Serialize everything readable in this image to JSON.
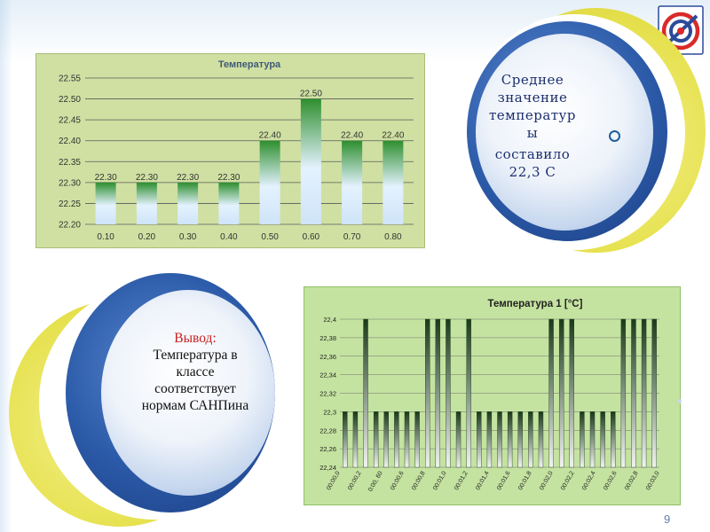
{
  "slide": {
    "page_number": "9",
    "average_text": [
      "Среднее",
      "значение",
      "температур",
      "ы",
      "составило",
      "22,3  С"
    ],
    "conclusion_title": "Вывод:",
    "conclusion_text": [
      "Температура в",
      "классе",
      "соответствует",
      "нормам САНПина"
    ],
    "logo_icon": "sanpin-emblem-icon"
  },
  "chart_data": [
    {
      "type": "bar",
      "title": "Температура",
      "xlabel": "",
      "ylabel": "",
      "categories": [
        "0.10",
        "0.20",
        "0.30",
        "0.40",
        "0.50",
        "0.60",
        "0.70",
        "0.80"
      ],
      "values": [
        22.3,
        22.3,
        22.3,
        22.3,
        22.4,
        22.5,
        22.4,
        22.4
      ],
      "data_labels": [
        "22.30",
        "22.30",
        "22.30",
        "22.30",
        "22.40",
        "22.50",
        "22.40",
        "22.40"
      ],
      "ylim": [
        22.2,
        22.55
      ],
      "yticks": [
        "22.20",
        "22.25",
        "22.30",
        "22.35",
        "22.40",
        "22.45",
        "22.50",
        "22.55"
      ],
      "grid": true,
      "legend": "none",
      "colors": {
        "background": "#cfe0a2",
        "bar_top": "#2e8f2e",
        "bar_bottom": "#cfe4f8"
      }
    },
    {
      "type": "bar",
      "title": "Температура  1 [°C]",
      "xlabel": "",
      "ylabel": "",
      "values": [
        22.3,
        22.3,
        22.4,
        22.3,
        22.3,
        22.3,
        22.3,
        22.3,
        22.4,
        22.4,
        22.4,
        22.3,
        22.4,
        22.3,
        22.3,
        22.3,
        22.3,
        22.3,
        22.3,
        22.3,
        22.4,
        22.4,
        22.4,
        22.3,
        22.3,
        22.3,
        22.3,
        22.4,
        22.4,
        22.4,
        22.4
      ],
      "x_tick_labels": [
        "00:00,0",
        "00:00,2",
        "0:00, 60",
        "00:00,6",
        "00:00,8",
        "00:01,0",
        "00:01,2",
        "00:01,4",
        "00:01,6",
        "00:01,8",
        "00:02,0",
        "00:02,2",
        "00:02,4",
        "00:02,6",
        "00:02,8",
        "00:03,0"
      ],
      "ylim": [
        22.24,
        22.4
      ],
      "yticks": [
        "22,24",
        "22,26",
        "22,28",
        "22,3",
        "22,32",
        "22,34",
        "22,36",
        "22,38",
        "22,4"
      ],
      "grid": true,
      "legend": "none",
      "colors": {
        "background": "#c4e3a0",
        "bar_top": "#1a3a1a",
        "bar_bottom": "#f2f2f2"
      }
    }
  ]
}
